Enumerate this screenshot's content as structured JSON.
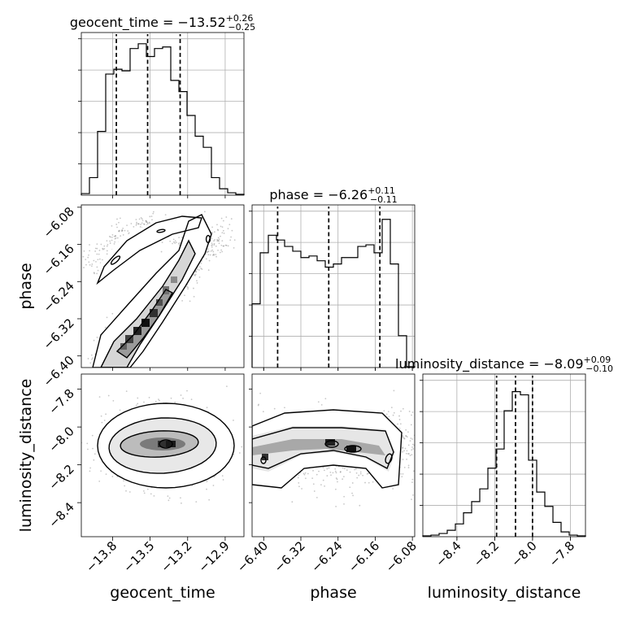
{
  "chart_data": [
    {
      "type": "histogram",
      "panel": "geocent_time-marginal",
      "title": {
        "text": "geocent_time = −13.52",
        "sup": "+0.26",
        "sub": "−0.25"
      },
      "x_ticks": [
        "−13.8",
        "−13.5",
        "−13.2",
        "−12.9"
      ],
      "xlim": [
        -14.05,
        -12.75
      ],
      "bin_edges": [
        -14.05,
        -13.985,
        -13.92,
        -13.855,
        -13.79,
        -13.725,
        -13.66,
        -13.595,
        -13.53,
        -13.465,
        -13.4,
        -13.335,
        -13.27,
        -13.205,
        -13.14,
        -13.075,
        -13.01,
        -12.945,
        -12.88,
        -12.815,
        -12.75
      ],
      "counts": [
        0.01,
        0.11,
        0.4,
        0.76,
        0.79,
        0.78,
        0.92,
        0.95,
        0.87,
        0.92,
        0.93,
        0.72,
        0.65,
        0.5,
        0.37,
        0.3,
        0.11,
        0.04,
        0.015,
        0.005
      ],
      "quantiles": [
        -13.77,
        -13.52,
        -13.26
      ],
      "grid": true
    },
    {
      "type": "histogram",
      "panel": "phase-marginal",
      "title": {
        "text": "phase = −6.26",
        "sup": "+0.11",
        "sub": "−0.11"
      },
      "x_ticks": [
        "−6.40",
        "−6.32",
        "−6.24",
        "−6.16",
        "−6.08"
      ],
      "xlim": [
        -6.425,
        -6.075
      ],
      "bin_edges": [
        -6.425,
        -6.4075,
        -6.39,
        -6.3725,
        -6.355,
        -6.3375,
        -6.32,
        -6.3025,
        -6.285,
        -6.2675,
        -6.25,
        -6.2325,
        -6.215,
        -6.1975,
        -6.18,
        -6.1625,
        -6.145,
        -6.1275,
        -6.11,
        -6.0925,
        -6.075
      ],
      "counts": [
        0.4,
        0.72,
        0.83,
        0.8,
        0.76,
        0.73,
        0.69,
        0.7,
        0.67,
        0.63,
        0.65,
        0.69,
        0.69,
        0.76,
        0.77,
        0.72,
        0.93,
        0.65,
        0.2,
        0.005
      ],
      "quantiles": [
        -6.37,
        -6.26,
        -6.15
      ],
      "grid": true
    },
    {
      "type": "histogram",
      "panel": "luminosity_distance-marginal",
      "title": {
        "text": "luminosity_distance = −8.09",
        "sup": "+0.09",
        "sub": "−0.10"
      },
      "x_ticks": [
        "−8.4",
        "−8.2",
        "−8.0",
        "−7.8"
      ],
      "xlim": [
        -8.58,
        -7.72
      ],
      "bin_edges": [
        -8.58,
        -8.537,
        -8.494,
        -8.451,
        -8.408,
        -8.365,
        -8.322,
        -8.279,
        -8.236,
        -8.193,
        -8.15,
        -8.107,
        -8.064,
        -8.021,
        -7.978,
        -7.935,
        -7.892,
        -7.849,
        -7.806,
        -7.763,
        -7.72
      ],
      "counts": [
        0.005,
        0.01,
        0.02,
        0.04,
        0.08,
        0.15,
        0.22,
        0.3,
        0.43,
        0.55,
        0.79,
        0.91,
        0.89,
        0.48,
        0.28,
        0.19,
        0.09,
        0.03,
        0.01,
        0.005
      ],
      "quantiles": [
        -8.19,
        -8.09,
        -8.0
      ],
      "grid": true
    },
    {
      "type": "scatter-density",
      "panel": "phase-vs-geocent_time",
      "xlim": [
        -14.05,
        -12.75
      ],
      "ylim": [
        -6.425,
        -6.075
      ],
      "y_ticks": [
        "−6.08",
        "−6.16",
        "−6.24",
        "−6.32",
        "−6.40"
      ],
      "ylabel": "phase",
      "note": "two correlated modes: main diagonal band and upper-left arc"
    },
    {
      "type": "scatter-density",
      "panel": "luminosity_distance-vs-geocent_time",
      "xlim": [
        -14.05,
        -12.75
      ],
      "ylim": [
        -8.58,
        -7.72
      ],
      "y_ticks": [
        "−7.8",
        "−8.0",
        "−8.2",
        "−8.4"
      ],
      "ylabel": "luminosity_distance",
      "xlabel": "geocent_time"
    },
    {
      "type": "scatter-density",
      "panel": "luminosity_distance-vs-phase",
      "xlim": [
        -6.425,
        -6.075
      ],
      "ylim": [
        -8.58,
        -7.72
      ],
      "xlabel": "phase"
    }
  ],
  "labels": {
    "x1": "geocent_time",
    "x2": "phase",
    "x3": "luminosity_distance",
    "y2": "phase",
    "y3": "luminosity_distance"
  }
}
